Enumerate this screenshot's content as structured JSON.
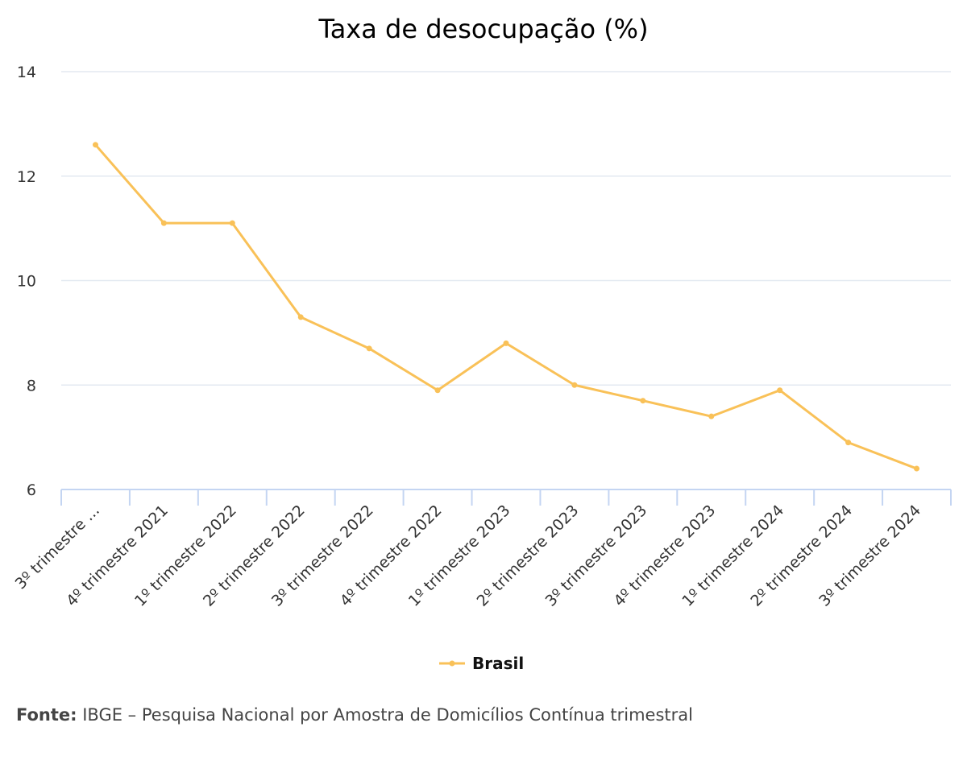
{
  "chart_data": {
    "type": "line",
    "title": "Taxa de desocupação (%)",
    "xlabel": "",
    "ylabel": "",
    "categories": [
      "3º trimestre ...",
      "4º trimestre 2021",
      "1º trimestre 2022",
      "2º trimestre 2022",
      "3º trimestre 2022",
      "4º trimestre 2022",
      "1º trimestre 2023",
      "2º trimestre 2023",
      "3º trimestre 2023",
      "4º trimestre 2023",
      "1º trimestre 2024",
      "2º trimestre 2024",
      "3º trimestre 2024"
    ],
    "series": [
      {
        "name": "Brasil",
        "color": "#f9c158",
        "values": [
          12.6,
          11.1,
          11.1,
          9.3,
          8.7,
          7.9,
          8.8,
          8.0,
          7.7,
          7.4,
          7.9,
          6.9,
          6.4
        ]
      }
    ],
    "ylim": [
      6,
      14
    ],
    "yticks": [
      6,
      8,
      10,
      12,
      14
    ],
    "grid": true,
    "legend": "bottom-center"
  },
  "source": {
    "label": "Fonte:",
    "text": " IBGE – Pesquisa Nacional por Amostra de Domicílios Contínua trimestral"
  }
}
